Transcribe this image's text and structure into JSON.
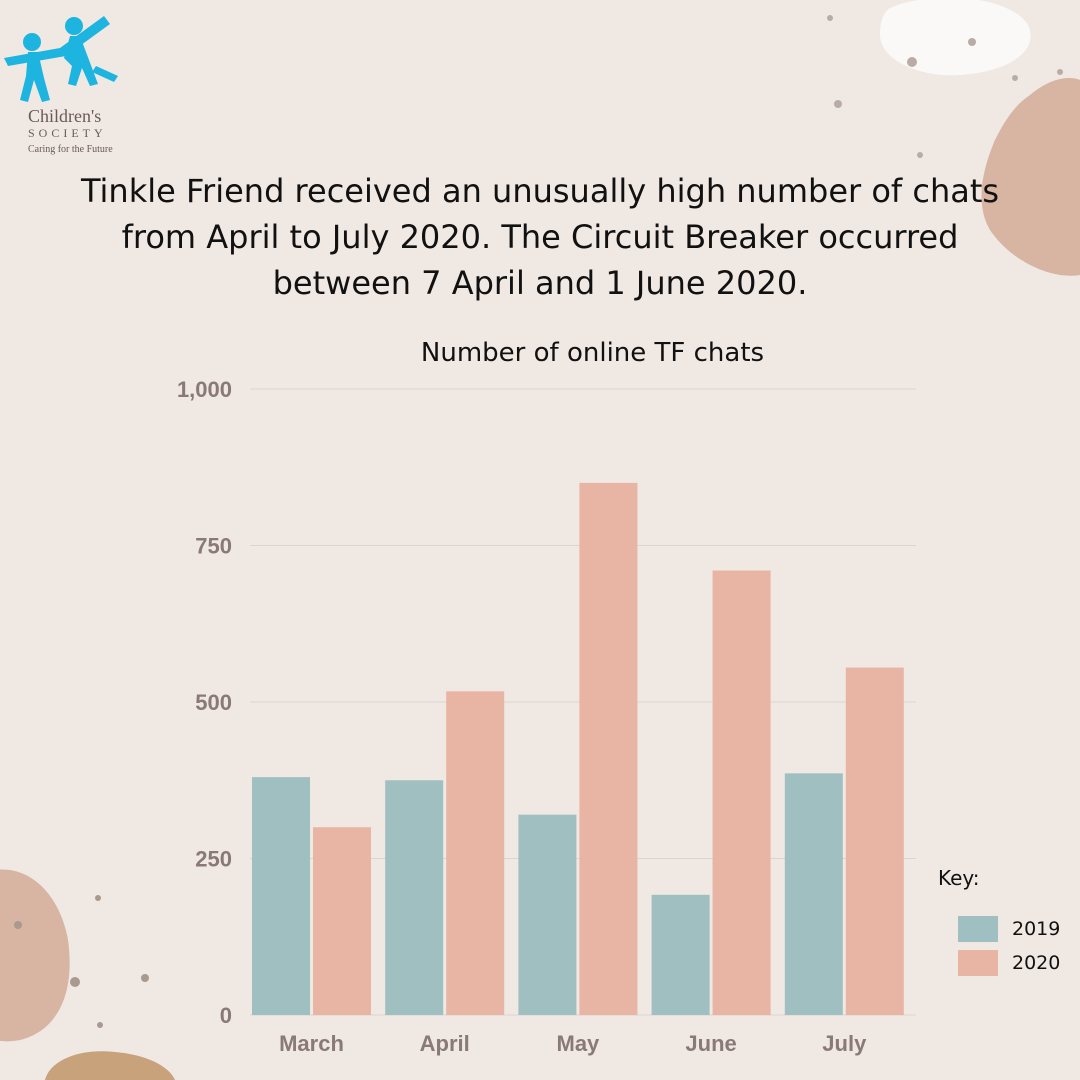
{
  "logo": {
    "name": "Children's",
    "name_line2": "SOCIETY",
    "tagline": "Caring for the Future"
  },
  "headline": "Tinkle Friend received an unusually high number of chats from April to July 2020. The Circuit Breaker occurred between 7 April and 1 June 2020.",
  "colors": {
    "background": "#f0e8e3",
    "series_2019": "#9fbfc1",
    "series_2020": "#e8b4a4",
    "logo": "#1eb4e0",
    "axis_text": "#8a7a76",
    "grid": "#ddd3cf"
  },
  "chart_data": {
    "type": "bar",
    "title": "Number of online TF chats",
    "categories": [
      "March",
      "April",
      "May",
      "June",
      "July"
    ],
    "series": [
      {
        "name": "2019",
        "values": [
          380,
          375,
          320,
          192,
          386
        ]
      },
      {
        "name": "2020",
        "values": [
          300,
          517,
          850,
          710,
          555
        ]
      }
    ],
    "ylim": [
      0,
      1000
    ],
    "yticks": [
      0,
      250,
      500,
      750,
      1000
    ],
    "ytick_labels": [
      "0",
      "250",
      "500",
      "750",
      "1,000"
    ],
    "grid": true,
    "legend_title": "Key:",
    "legend_position": "bottom-right"
  }
}
